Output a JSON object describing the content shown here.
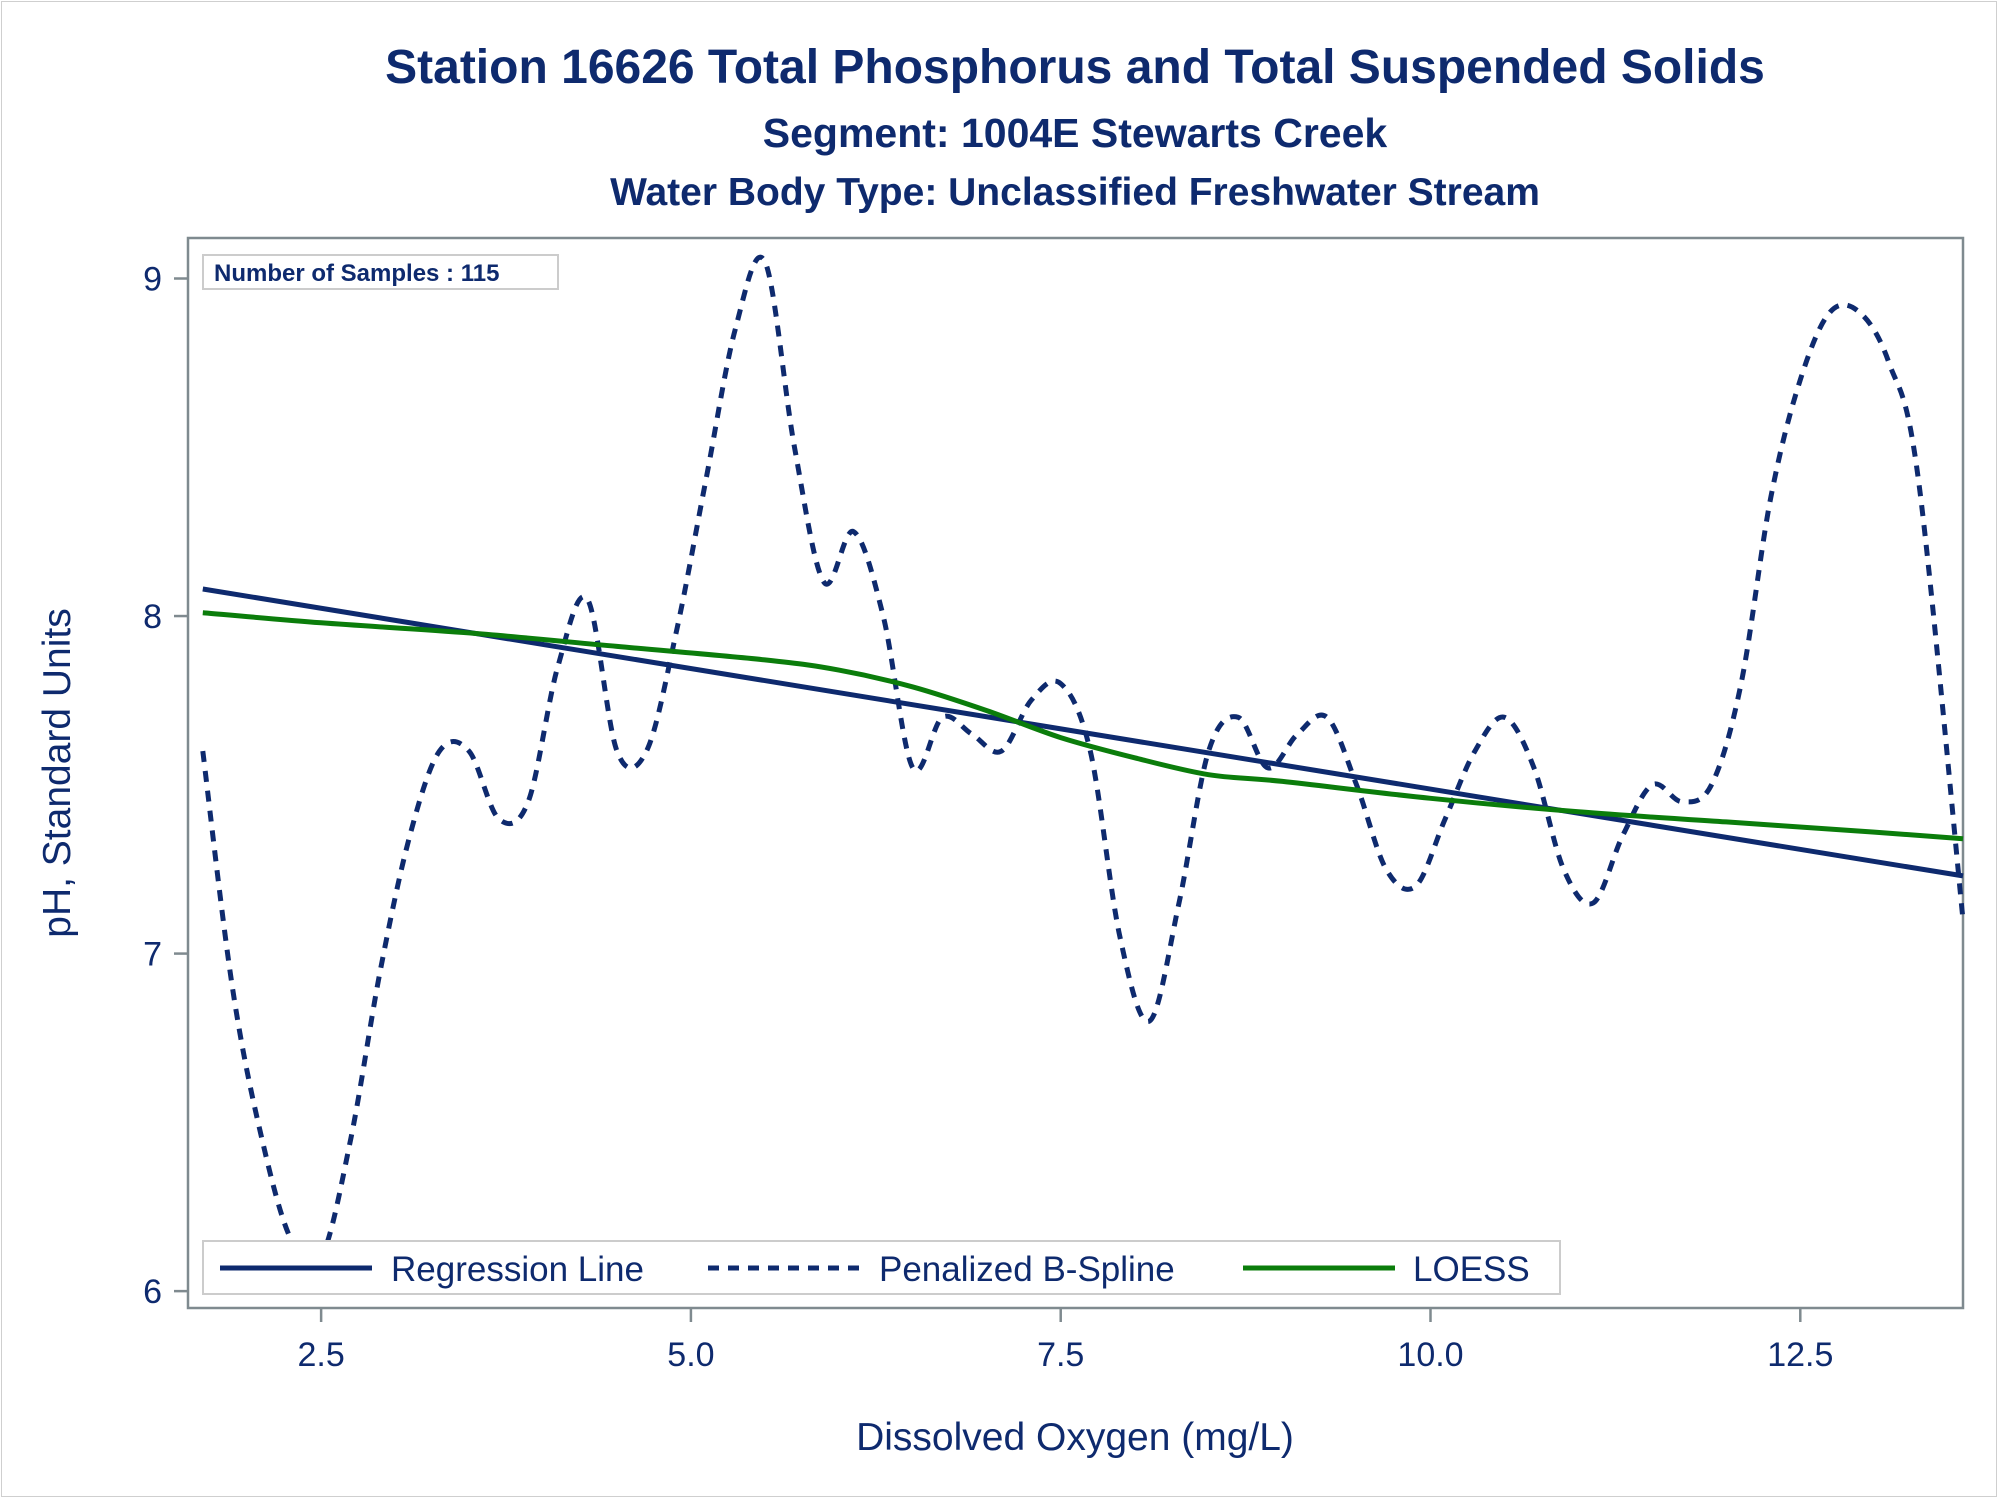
{
  "chart_data": {
    "type": "line",
    "title": "Station 16626  Total Phosphorus and Total Suspended Solids",
    "subtitle": "Segment: 1004E  Stewarts Creek",
    "subtitle2": "Water Body Type: Unclassified Freshwater Stream",
    "xlabel": "Dissolved Oxygen (mg/L)",
    "ylabel": "pH, Standard Units",
    "xlim": [
      1.6,
      13.6
    ],
    "ylim": [
      5.95,
      9.12
    ],
    "xticks": [
      2.5,
      5.0,
      7.5,
      10.0,
      12.5
    ],
    "xtick_labels": [
      "2.5",
      "5.0",
      "7.5",
      "10.0",
      "12.5"
    ],
    "yticks": [
      6,
      7,
      8,
      9
    ],
    "ytick_labels": [
      "6",
      "7",
      "8",
      "9"
    ],
    "grid": false,
    "legend_position": "bottom-left inside",
    "annotation": "Number of Samples : 115",
    "series": [
      {
        "name": "Regression Line",
        "style": "solid",
        "color": "#0e2a6e",
        "x": [
          1.7,
          13.6
        ],
        "y": [
          8.08,
          7.23
        ]
      },
      {
        "name": "Penalized B-Spline",
        "style": "dashed",
        "color": "#0e2a6e",
        "x": [
          1.7,
          1.9,
          2.1,
          2.3,
          2.5,
          2.7,
          2.9,
          3.1,
          3.3,
          3.5,
          3.7,
          3.9,
          4.1,
          4.3,
          4.5,
          4.7,
          4.9,
          5.1,
          5.3,
          5.5,
          5.7,
          5.9,
          6.1,
          6.3,
          6.5,
          6.7,
          6.9,
          7.1,
          7.3,
          7.5,
          7.7,
          7.9,
          8.1,
          8.3,
          8.5,
          8.7,
          8.9,
          9.1,
          9.3,
          9.5,
          9.7,
          9.9,
          10.1,
          10.3,
          10.5,
          10.7,
          10.9,
          11.1,
          11.3,
          11.5,
          11.7,
          11.9,
          12.1,
          12.3,
          12.5,
          12.7,
          12.9,
          13.1,
          13.3,
          13.6
        ],
        "y": [
          7.6,
          6.9,
          6.45,
          6.15,
          6.1,
          6.45,
          6.95,
          7.35,
          7.6,
          7.6,
          7.4,
          7.45,
          7.85,
          8.05,
          7.6,
          7.6,
          7.95,
          8.4,
          8.85,
          9.05,
          8.5,
          8.1,
          8.25,
          8.0,
          7.55,
          7.7,
          7.65,
          7.6,
          7.75,
          7.8,
          7.6,
          7.05,
          6.8,
          7.15,
          7.6,
          7.7,
          7.55,
          7.65,
          7.7,
          7.5,
          7.25,
          7.2,
          7.4,
          7.6,
          7.7,
          7.55,
          7.25,
          7.15,
          7.35,
          7.5,
          7.45,
          7.5,
          7.8,
          8.35,
          8.7,
          8.9,
          8.9,
          8.75,
          8.4,
          7.1
        ]
      },
      {
        "name": "LOESS",
        "style": "solid",
        "color": "#0b7d0b",
        "x": [
          1.7,
          2.5,
          3.5,
          4.5,
          5.5,
          6.0,
          6.5,
          7.0,
          7.5,
          8.0,
          8.5,
          9.0,
          10.0,
          11.0,
          12.0,
          13.0,
          13.6
        ],
        "y": [
          8.01,
          7.98,
          7.95,
          7.91,
          7.87,
          7.84,
          7.79,
          7.72,
          7.64,
          7.58,
          7.53,
          7.51,
          7.46,
          7.42,
          7.39,
          7.36,
          7.34
        ]
      }
    ]
  },
  "colors": {
    "text": "#0e2a6e",
    "axis": "#7f8a8f",
    "regression": "#0e2a6e",
    "spline": "#0e2a6e",
    "loess": "#0b7d0b",
    "box_border": "#cccccc"
  }
}
